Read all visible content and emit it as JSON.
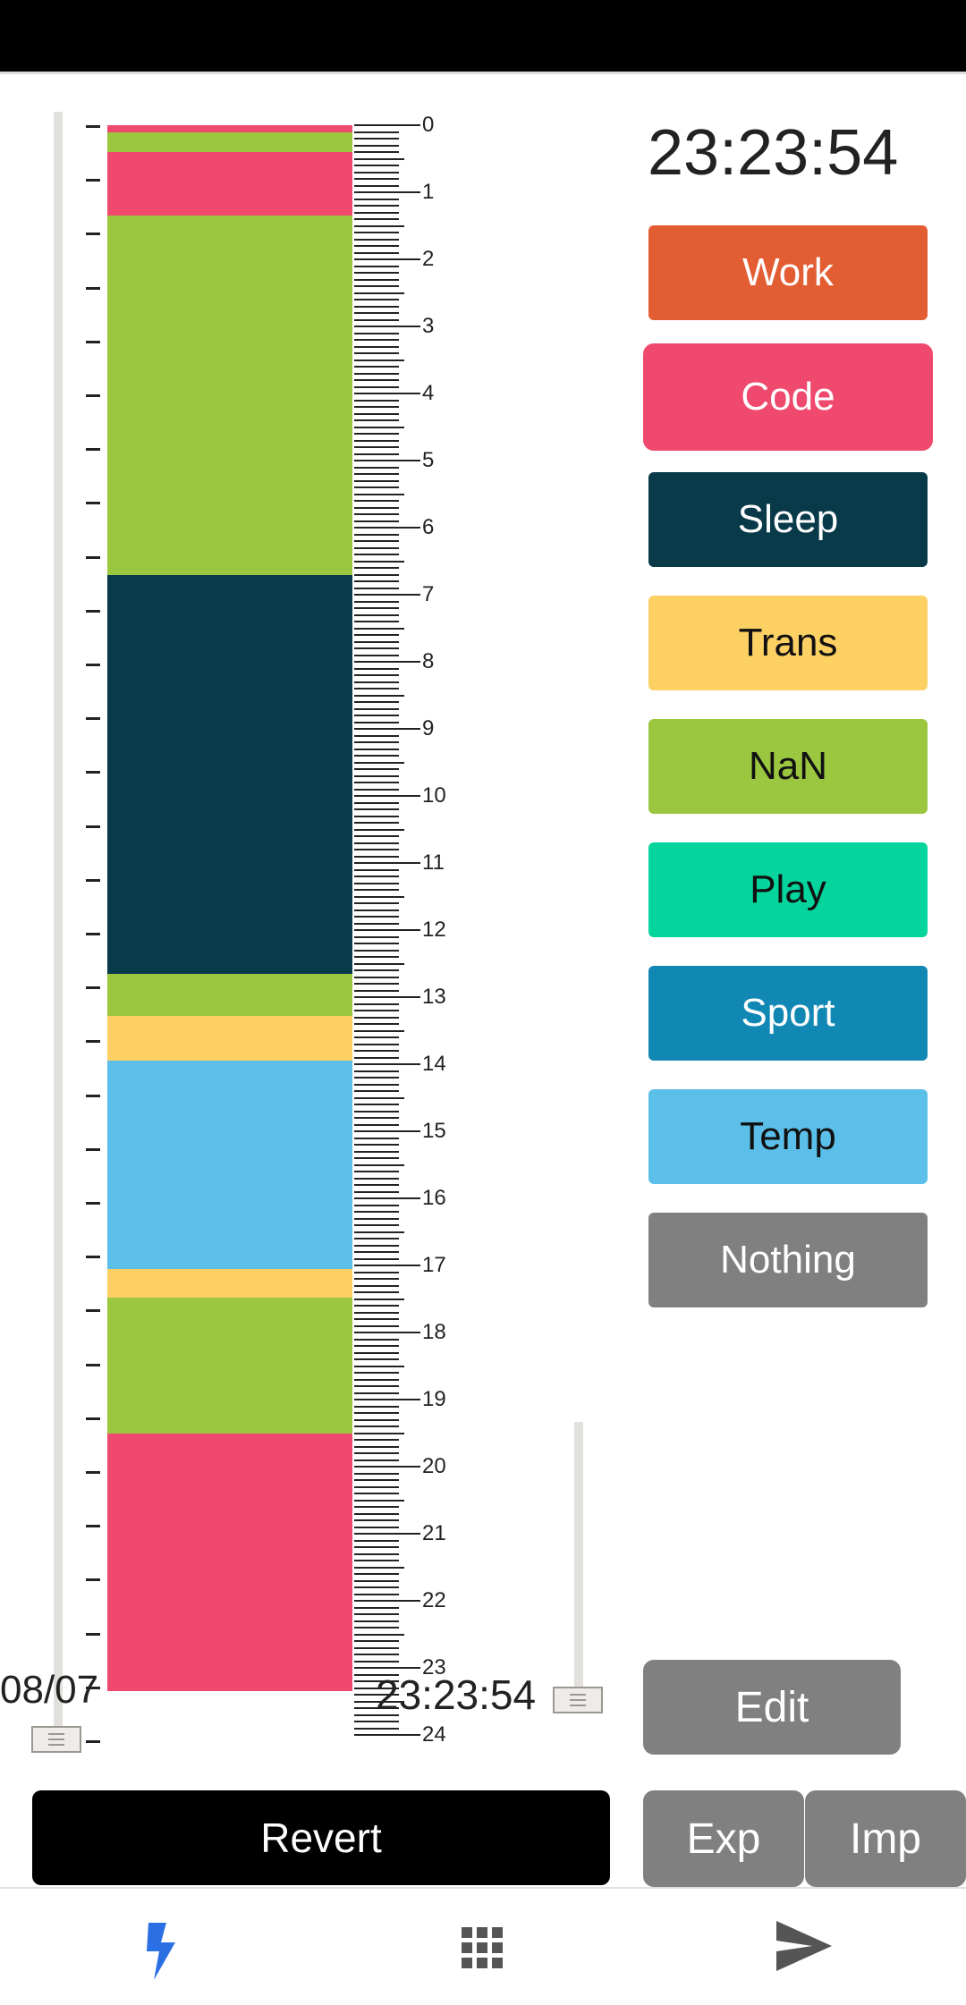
{
  "clock": "23:23:54",
  "date_label": "08/07",
  "time_label": "23:23:54",
  "ruler_labels": [
    "0",
    "1",
    "2",
    "3",
    "4",
    "5",
    "6",
    "7",
    "8",
    "9",
    "10",
    "11",
    "12",
    "13",
    "14",
    "15",
    "16",
    "17",
    "18",
    "19",
    "20",
    "21",
    "22",
    "23",
    "24"
  ],
  "timeline_segments": [
    {
      "category": "Code",
      "color": "#ef4a6e",
      "start_hour": 0.0,
      "end_hour": 0.1
    },
    {
      "category": "NaN",
      "color": "#9ac640",
      "start_hour": 0.1,
      "end_hour": 0.4
    },
    {
      "category": "Code",
      "color": "#ef4a6e",
      "start_hour": 0.4,
      "end_hour": 1.35
    },
    {
      "category": "NaN",
      "color": "#9ac640",
      "start_hour": 1.35,
      "end_hour": 6.7
    },
    {
      "category": "Sleep",
      "color": "#083a4a",
      "start_hour": 6.7,
      "end_hour": 12.65
    },
    {
      "category": "NaN",
      "color": "#9ac640",
      "start_hour": 12.65,
      "end_hour": 13.28
    },
    {
      "category": "Trans",
      "color": "#fdd063",
      "start_hour": 13.28,
      "end_hour": 13.95
    },
    {
      "category": "Temp",
      "color": "#5bbfe9",
      "start_hour": 13.95,
      "end_hour": 17.05
    },
    {
      "category": "Trans",
      "color": "#fdd063",
      "start_hour": 17.05,
      "end_hour": 17.48
    },
    {
      "category": "NaN",
      "color": "#9ac640",
      "start_hour": 17.48,
      "end_hour": 19.5
    },
    {
      "category": "Code",
      "color": "#ef4a6e",
      "start_hour": 19.5,
      "end_hour": 23.35
    }
  ],
  "categories": [
    {
      "label": "Work",
      "bg": "#e35d33",
      "fg": "#ffffff"
    },
    {
      "label": "Code",
      "bg": "#ef4a6e",
      "fg": "#ffffff",
      "selected": true
    },
    {
      "label": "Sleep",
      "bg": "#083a4a",
      "fg": "#ffffff"
    },
    {
      "label": "Trans",
      "bg": "#fdd063",
      "fg": "#111111"
    },
    {
      "label": "NaN",
      "bg": "#9ac640",
      "fg": "#111111"
    },
    {
      "label": "Play",
      "bg": "#05d49d",
      "fg": "#111111"
    },
    {
      "label": "Sport",
      "bg": "#1188b4",
      "fg": "#ffffff"
    },
    {
      "label": "Temp",
      "bg": "#5bbfe9",
      "fg": "#111111"
    },
    {
      "label": "Nothing",
      "bg": "#808080",
      "fg": "#ffffff"
    }
  ],
  "actions": {
    "edit": "Edit",
    "exp": "Exp",
    "imp": "Imp",
    "revert": "Revert"
  },
  "nav": [
    {
      "icon": "lightning-icon",
      "active": true,
      "color": "#2b6fe4"
    },
    {
      "icon": "grid-icon",
      "active": false,
      "color": "#555555"
    },
    {
      "icon": "send-icon",
      "active": false,
      "color": "#555555"
    }
  ]
}
